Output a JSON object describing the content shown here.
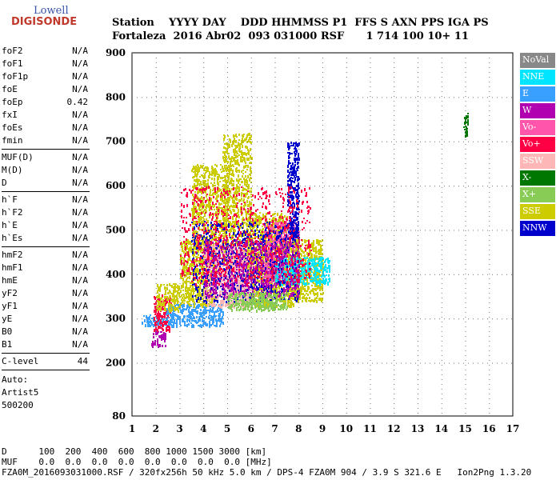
{
  "logo": {
    "line1": "Lowell",
    "line2": "DIGISONDE"
  },
  "header": {
    "line1": "Station    YYYY DAY    DDD HHMMSS P1  FFS S AXN PPS IGA PS",
    "line2": "Fortaleza  2016 Abr02  093 031000 RSF      1 714 100 10+ 11"
  },
  "params": {
    "group1": [
      {
        "name": "foF2",
        "value": "N/A"
      },
      {
        "name": "foF1",
        "value": "N/A"
      },
      {
        "name": "foF1p",
        "value": "N/A"
      },
      {
        "name": "foE",
        "value": "N/A"
      },
      {
        "name": "foEp",
        "value": "0.42"
      },
      {
        "name": "fxI",
        "value": "N/A"
      },
      {
        "name": "foEs",
        "value": "N/A"
      },
      {
        "name": "fmin",
        "value": "N/A"
      }
    ],
    "group2": [
      {
        "name": "MUF(D)",
        "value": "N/A"
      },
      {
        "name": "M(D)",
        "value": "N/A"
      },
      {
        "name": "D",
        "value": "N/A"
      }
    ],
    "group3": [
      {
        "name": "h`F",
        "value": "N/A"
      },
      {
        "name": "h`F2",
        "value": "N/A"
      },
      {
        "name": "h`E",
        "value": "N/A"
      },
      {
        "name": "h`Es",
        "value": "N/A"
      }
    ],
    "group4": [
      {
        "name": "hmF2",
        "value": "N/A"
      },
      {
        "name": "hmF1",
        "value": "N/A"
      },
      {
        "name": "hmE",
        "value": "N/A"
      },
      {
        "name": "yF2",
        "value": "N/A"
      },
      {
        "name": "yF1",
        "value": "N/A"
      },
      {
        "name": "yE",
        "value": "N/A"
      },
      {
        "name": "B0",
        "value": "N/A"
      },
      {
        "name": "B1",
        "value": "N/A"
      }
    ],
    "clevel": {
      "name": "C-level",
      "value": "44"
    },
    "auto": [
      "Auto:",
      "Artist5",
      "500200"
    ]
  },
  "legend": [
    {
      "label": "NoVal",
      "color": "#888888"
    },
    {
      "label": "NNE",
      "color": "#00e5ff"
    },
    {
      "label": "E",
      "color": "#3aa0ff"
    },
    {
      "label": "W",
      "color": "#b000b0"
    },
    {
      "label": "Vo-",
      "color": "#ff55aa"
    },
    {
      "label": "Vo+",
      "color": "#ff0044"
    },
    {
      "label": "SSW",
      "color": "#ffb6b6"
    },
    {
      "label": "X-",
      "color": "#007700"
    },
    {
      "label": "X+",
      "color": "#88cc55"
    },
    {
      "label": "SSE",
      "color": "#cccc00"
    },
    {
      "label": "NNW",
      "color": "#0000cc"
    }
  ],
  "footer": {
    "line1": "D      100  200  400  600  800 1000 1500 3000 [km]",
    "line2": "MUF    0.0  0.0  0.0  0.0  0.0  0.0  0.0  0.0 [MHz]",
    "line3": "FZA0M_2016093031000.RSF / 320fx256h 50 kHz 5.0 km / DPS-4 FZA0M 904 / 3.9 S 321.6 E   Ion2Png 1.3.20"
  },
  "chart_data": {
    "type": "scatter",
    "xlim": [
      1,
      17
    ],
    "ylim": [
      80,
      900
    ],
    "xticks": [
      1,
      2,
      3,
      4,
      5,
      6,
      7,
      8,
      9,
      10,
      11,
      12,
      13,
      14,
      15,
      16,
      17
    ],
    "yticks": [
      80,
      200,
      300,
      400,
      500,
      600,
      700,
      800,
      900
    ],
    "regions": [
      {
        "x": [
          1.4,
          2.4
        ],
        "y": [
          285,
          310
        ],
        "color": "#3aa0ff"
      },
      {
        "x": [
          1.8,
          2.4
        ],
        "y": [
          240,
          275
        ],
        "color": "#b000b0"
      },
      {
        "x": [
          1.9,
          2.6
        ],
        "y": [
          275,
          355
        ],
        "color": "#ff0044"
      },
      {
        "x": [
          2.4,
          4.8
        ],
        "y": [
          285,
          335
        ],
        "color": "#3aa0ff"
      },
      {
        "x": [
          2.0,
          3.0
        ],
        "y": [
          320,
          380
        ],
        "color": "#cccc00"
      },
      {
        "x": [
          3.0,
          4.5
        ],
        "y": [
          330,
          480
        ],
        "color": "#cccc00"
      },
      {
        "x": [
          3.5,
          5.0
        ],
        "y": [
          450,
          650
        ],
        "color": "#cccc00"
      },
      {
        "x": [
          4.8,
          6.0
        ],
        "y": [
          420,
          720
        ],
        "color": "#cccc00"
      },
      {
        "x": [
          4.0,
          6.0
        ],
        "y": [
          330,
          470
        ],
        "color": "#ffb6b6"
      },
      {
        "x": [
          5.0,
          6.8
        ],
        "y": [
          330,
          460
        ],
        "color": "#ffb6b6"
      },
      {
        "x": [
          5.8,
          7.5
        ],
        "y": [
          400,
          540
        ],
        "color": "#cccc00"
      },
      {
        "x": [
          6.0,
          8.0
        ],
        "y": [
          330,
          400
        ],
        "color": "#cccc00"
      },
      {
        "x": [
          6.5,
          8.0
        ],
        "y": [
          380,
          520
        ],
        "color": "#ff55aa"
      },
      {
        "x": [
          7.5,
          9.0
        ],
        "y": [
          340,
          480
        ],
        "color": "#cccc00"
      },
      {
        "x": [
          7.0,
          9.3
        ],
        "y": [
          380,
          440
        ],
        "color": "#00e5ff"
      },
      {
        "x": [
          3.5,
          8.0
        ],
        "y": [
          340,
          520
        ],
        "color": "#0000cc"
      },
      {
        "x": [
          4.0,
          8.0
        ],
        "y": [
          350,
          480
        ],
        "color": "#b000b0"
      },
      {
        "x": [
          7.5,
          8.0
        ],
        "y": [
          480,
          700
        ],
        "color": "#0000cc"
      },
      {
        "x": [
          5.0,
          7.5
        ],
        "y": [
          320,
          360
        ],
        "color": "#88cc55"
      },
      {
        "x": [
          3.0,
          8.5
        ],
        "y": [
          380,
          600
        ],
        "color": "#ff0044"
      },
      {
        "x": [
          14.9,
          15.1
        ],
        "y": [
          715,
          765
        ],
        "color": "#007700"
      }
    ]
  }
}
